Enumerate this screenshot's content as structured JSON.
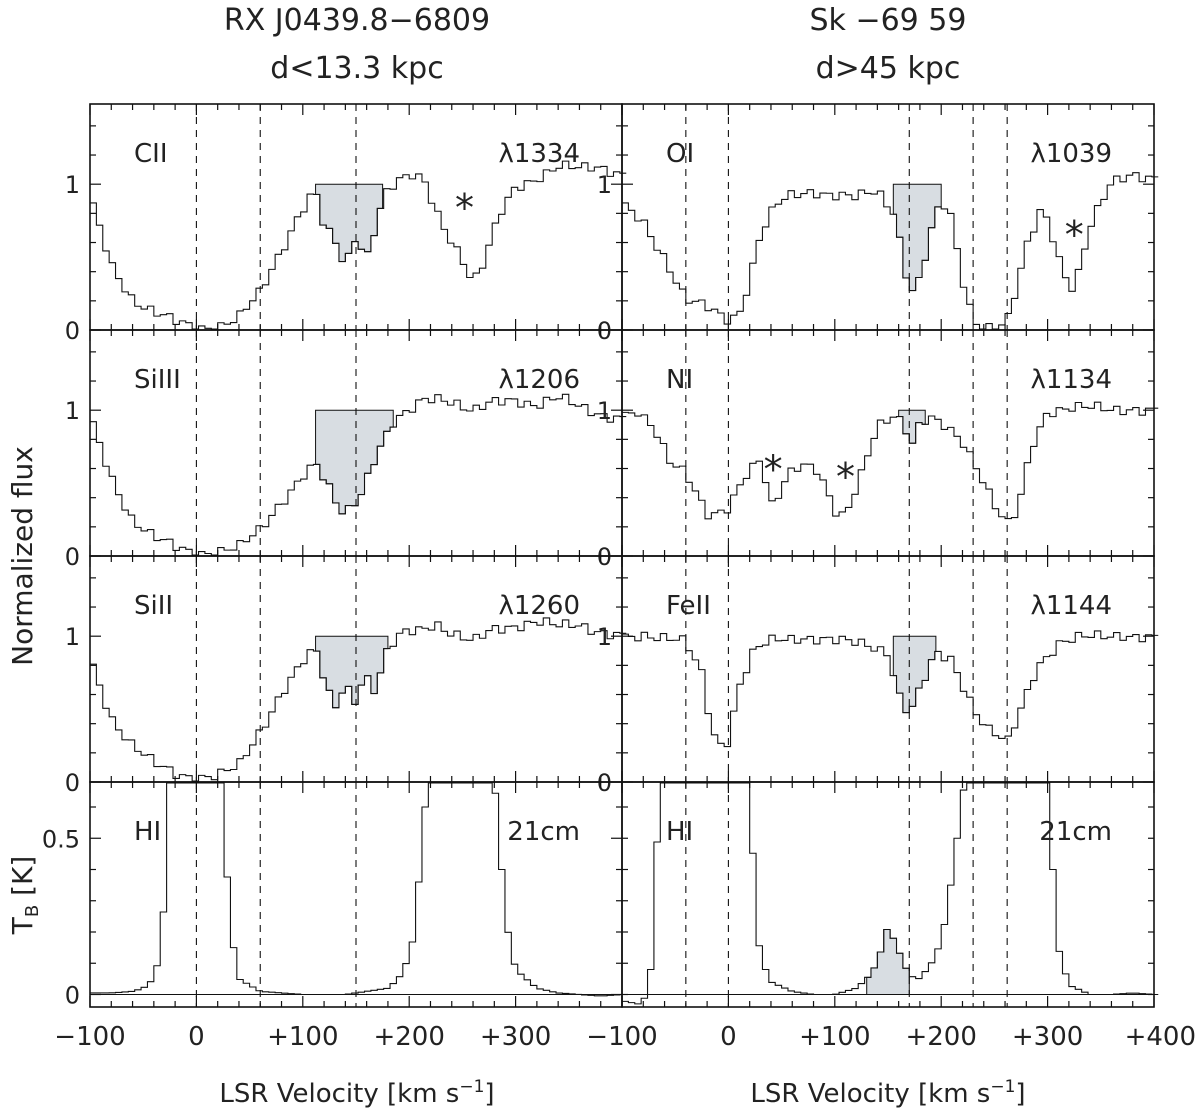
{
  "header": {
    "left_title": "RX J0439.8−6809",
    "left_sub": "d<13.3 kpc",
    "right_title": "Sk −69 59",
    "right_sub": "d>45 kpc"
  },
  "axes": {
    "ylabel_top": "Normalized flux",
    "ylabel_bottom": "T",
    "ylabel_bottom_sub": "B",
    "ylabel_bottom_unit": " [K]",
    "xlabel": "LSR Velocity [km s",
    "xlabel_sup": "−1",
    "xlabel_end": "]"
  },
  "chart_data": [
    {
      "type": "line",
      "column": "left",
      "row": 0,
      "ion": "CII",
      "line": "λ1334",
      "xlim": [
        -100,
        400
      ],
      "ylim": [
        0,
        1.55
      ],
      "yticks": [
        0,
        1
      ],
      "ylabels": [
        "0",
        "1"
      ],
      "dashed_v": [
        0,
        60,
        150
      ],
      "shade_range": [
        112,
        175
      ],
      "star_v": 252,
      "series": [
        {
          "x": [
            -100,
            -80,
            -60,
            -40,
            -20,
            0,
            20,
            40,
            60,
            80,
            95,
            105,
            112,
            120,
            130,
            140,
            150,
            160,
            168,
            175,
            180,
            190,
            205,
            215,
            225,
            240,
            250,
            260,
            270,
            285,
            300,
            320,
            340,
            360,
            380,
            400
          ],
          "y": [
            0.9,
            0.45,
            0.22,
            0.12,
            0.05,
            0.02,
            0.03,
            0.08,
            0.25,
            0.55,
            0.78,
            0.9,
            0.95,
            0.7,
            0.6,
            0.42,
            0.65,
            0.5,
            0.72,
            0.9,
            0.97,
            1.02,
            1.05,
            1.0,
            0.82,
            0.62,
            0.5,
            0.32,
            0.45,
            0.78,
            0.98,
            1.05,
            1.12,
            1.1,
            1.12,
            1.08
          ]
        }
      ]
    },
    {
      "type": "line",
      "column": "right",
      "row": 0,
      "ion": "OI",
      "line": "λ1039",
      "xlim": [
        -100,
        400
      ],
      "ylim": [
        0,
        1.55
      ],
      "yticks": [
        0,
        1
      ],
      "ylabels": [
        "0",
        "1"
      ],
      "dashed_v": [
        -40,
        0,
        170,
        230,
        262
      ],
      "shade_range": [
        155,
        200
      ],
      "star_v": 325,
      "series": [
        {
          "x": [
            -100,
            -80,
            -60,
            -40,
            -20,
            0,
            10,
            20,
            30,
            45,
            60,
            80,
            100,
            120,
            140,
            155,
            165,
            170,
            180,
            190,
            200,
            210,
            220,
            230,
            240,
            250,
            262,
            270,
            280,
            295,
            305,
            315,
            325,
            340,
            360,
            380,
            400
          ],
          "y": [
            0.85,
            0.75,
            0.5,
            0.2,
            0.15,
            0.08,
            0.12,
            0.35,
            0.65,
            0.85,
            0.92,
            0.96,
            0.93,
            0.9,
            0.95,
            0.82,
            0.5,
            0.25,
            0.35,
            0.65,
            0.88,
            0.75,
            0.35,
            0.08,
            0.03,
            0.03,
            0.05,
            0.25,
            0.55,
            0.85,
            0.65,
            0.4,
            0.28,
            0.7,
            1.0,
            1.08,
            1.05
          ]
        }
      ]
    },
    {
      "type": "line",
      "column": "left",
      "row": 1,
      "ion": "SiIII",
      "line": "λ1206",
      "xlim": [
        -100,
        400
      ],
      "ylim": [
        0,
        1.55
      ],
      "yticks": [
        0,
        1
      ],
      "ylabels": [
        "0",
        "1"
      ],
      "dashed_v": [
        0,
        60,
        150
      ],
      "shade_range": [
        112,
        185
      ],
      "star_v": null,
      "series": [
        {
          "x": [
            -100,
            -80,
            -60,
            -40,
            -20,
            0,
            20,
            40,
            60,
            80,
            100,
            112,
            125,
            135,
            145,
            155,
            170,
            185,
            200,
            215,
            230,
            245,
            260,
            280,
            300,
            320,
            340,
            360,
            380,
            400
          ],
          "y": [
            0.95,
            0.55,
            0.25,
            0.12,
            0.06,
            0.03,
            0.03,
            0.05,
            0.18,
            0.38,
            0.55,
            0.62,
            0.45,
            0.3,
            0.33,
            0.45,
            0.72,
            0.9,
            0.98,
            1.08,
            1.1,
            1.05,
            0.98,
            1.05,
            1.08,
            1.04,
            1.08,
            1.02,
            0.98,
            0.95
          ]
        }
      ]
    },
    {
      "type": "line",
      "column": "right",
      "row": 1,
      "ion": "NI",
      "line": "λ1134",
      "xlim": [
        -100,
        400
      ],
      "ylim": [
        0,
        1.55
      ],
      "yticks": [
        0,
        1
      ],
      "ylabels": [
        "0",
        "1"
      ],
      "dashed_v": [
        -40,
        0,
        170,
        230,
        262
      ],
      "shade_range": [
        160,
        185
      ],
      "star_vs": [
        42,
        110
      ],
      "series": [
        {
          "x": [
            -100,
            -85,
            -70,
            -55,
            -40,
            -20,
            -10,
            0,
            15,
            30,
            42,
            55,
            70,
            85,
            100,
            110,
            125,
            140,
            155,
            165,
            172,
            180,
            190,
            205,
            220,
            235,
            250,
            262,
            272,
            285,
            300,
            320,
            340,
            360,
            380,
            400
          ],
          "y": [
            0.95,
            1.0,
            0.9,
            0.65,
            0.55,
            0.28,
            0.3,
            0.35,
            0.55,
            0.65,
            0.3,
            0.55,
            0.65,
            0.6,
            0.3,
            0.25,
            0.55,
            0.9,
            0.98,
            0.92,
            0.75,
            0.9,
            0.93,
            0.88,
            0.8,
            0.6,
            0.35,
            0.2,
            0.3,
            0.75,
            1.0,
            1.02,
            1.01,
            1.0,
            1.02,
            1.0
          ]
        }
      ]
    },
    {
      "type": "line",
      "column": "left",
      "row": 2,
      "ion": "SiII",
      "line": "λ1260",
      "xlim": [
        -100,
        400
      ],
      "ylim": [
        0,
        1.55
      ],
      "yticks": [
        0,
        1
      ],
      "ylabels": [
        "0",
        "1"
      ],
      "dashed_v": [
        0,
        60,
        150
      ],
      "shade_range": [
        112,
        180
      ],
      "star_v": null,
      "series": [
        {
          "x": [
            -100,
            -80,
            -60,
            -40,
            -20,
            0,
            20,
            40,
            60,
            80,
            100,
            112,
            122,
            130,
            140,
            148,
            158,
            168,
            180,
            195,
            210,
            225,
            240,
            260,
            280,
            300,
            320,
            340,
            360,
            380,
            400
          ],
          "y": [
            0.85,
            0.45,
            0.25,
            0.12,
            0.06,
            0.04,
            0.04,
            0.1,
            0.35,
            0.62,
            0.82,
            0.9,
            0.65,
            0.5,
            0.7,
            0.55,
            0.75,
            0.62,
            0.9,
            1.02,
            1.05,
            1.1,
            1.02,
            0.95,
            1.05,
            1.08,
            1.1,
            1.06,
            1.08,
            1.04,
            1.0
          ]
        }
      ]
    },
    {
      "type": "line",
      "column": "right",
      "row": 2,
      "ion": "FeII",
      "line": "λ1144",
      "xlim": [
        -100,
        400
      ],
      "ylim": [
        0,
        1.55
      ],
      "yticks": [
        0,
        1
      ],
      "ylabels": [
        "0",
        "1"
      ],
      "dashed_v": [
        -40,
        0,
        170,
        230,
        262
      ],
      "shade_range": [
        155,
        195
      ],
      "star_v": null,
      "series": [
        {
          "x": [
            -100,
            -80,
            -60,
            -40,
            -25,
            -15,
            -5,
            0,
            10,
            25,
            45,
            70,
            100,
            130,
            150,
            160,
            170,
            180,
            195,
            210,
            225,
            235,
            245,
            255,
            262,
            275,
            290,
            310,
            330,
            350,
            370,
            385,
            400
          ],
          "y": [
            1.0,
            1.02,
            0.98,
            0.95,
            0.75,
            0.35,
            0.25,
            0.3,
            0.65,
            0.9,
            0.98,
            1.0,
            0.96,
            0.95,
            0.9,
            0.6,
            0.45,
            0.62,
            0.88,
            0.85,
            0.6,
            0.45,
            0.35,
            0.3,
            0.25,
            0.5,
            0.8,
            0.95,
            0.98,
            1.0,
            1.02,
            1.0,
            0.98
          ]
        }
      ]
    },
    {
      "type": "line",
      "column": "left",
      "row": 3,
      "ion": "HI",
      "line": "21cm",
      "xlim": [
        -100,
        400
      ],
      "ylim": [
        -0.04,
        0.68
      ],
      "yticks": [
        0,
        0.5
      ],
      "ylabels": [
        "0",
        "0.5"
      ],
      "dashed_v": [
        0,
        60,
        150
      ],
      "shade_range": null,
      "star_v": null,
      "series": [
        {
          "x": [
            -100,
            -80,
            -60,
            -50,
            -40,
            -35,
            -30,
            -25,
            25,
            30,
            35,
            40,
            60,
            100,
            140,
            180,
            190,
            200,
            205,
            210,
            215,
            220,
            280,
            285,
            290,
            300,
            320,
            340,
            360,
            380,
            400
          ],
          "y": [
            0.005,
            0.005,
            0.01,
            0.02,
            0.05,
            0.12,
            0.3,
            0.68,
            0.68,
            0.3,
            0.15,
            0.05,
            0.01,
            0.0,
            0.0,
            0.02,
            0.05,
            0.12,
            0.2,
            0.4,
            0.6,
            0.68,
            0.68,
            0.5,
            0.25,
            0.08,
            0.02,
            0.005,
            0.0,
            -0.005,
            0.0
          ]
        }
      ]
    },
    {
      "type": "line",
      "column": "right",
      "row": 3,
      "ion": "HI",
      "line": "21cm",
      "xlim": [
        -100,
        400
      ],
      "ylim": [
        -0.04,
        0.68
      ],
      "yticks": [],
      "ylabels": [],
      "dashed_v": [
        -40,
        0,
        170,
        230,
        262
      ],
      "shade_range": [
        130,
        170
      ],
      "star_v": null,
      "series": [
        {
          "x": [
            -100,
            -85,
            -75,
            -70,
            -65,
            20,
            25,
            30,
            40,
            60,
            80,
            100,
            120,
            130,
            140,
            150,
            160,
            170,
            180,
            195,
            205,
            215,
            222,
            300,
            305,
            310,
            320,
            340,
            360,
            380,
            400
          ],
          "y": [
            -0.02,
            -0.03,
            0.0,
            0.2,
            0.68,
            0.68,
            0.3,
            0.12,
            0.04,
            0.01,
            0.0,
            0.0,
            0.02,
            0.05,
            0.1,
            0.22,
            0.14,
            0.06,
            0.05,
            0.12,
            0.25,
            0.5,
            0.68,
            0.68,
            0.4,
            0.15,
            0.03,
            0.0,
            0.0,
            0.005,
            0.0
          ]
        }
      ]
    }
  ],
  "xaxis": {
    "left_ticks": [
      "−100",
      "0",
      "+100",
      "+200",
      "+300"
    ],
    "left_values": [
      -100,
      0,
      100,
      200,
      300
    ],
    "right_ticks": [
      "−100",
      "0",
      "+100",
      "+200",
      "+300",
      "+400"
    ],
    "right_values": [
      -100,
      0,
      100,
      200,
      300,
      400
    ]
  }
}
